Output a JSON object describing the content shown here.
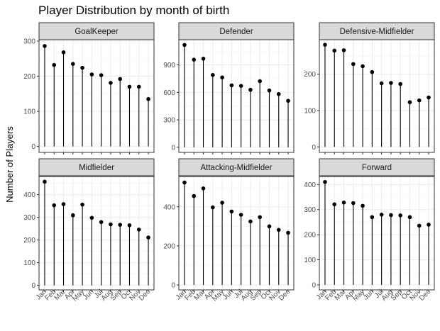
{
  "chart_data": {
    "type": "lollipop",
    "title": "Player Distribution by month of birth",
    "ylabel": "Number of Players",
    "xlabel": "",
    "categories": [
      "Jan",
      "Feb",
      "Mar",
      "Apr",
      "May",
      "Jun",
      "Jul",
      "Aug",
      "Sep",
      "Oct",
      "Nov",
      "Dec"
    ],
    "facet_layout": "2 rows x 3 columns, free y scales",
    "grid": true,
    "panels": [
      {
        "name": "GoalKeeper",
        "ylim": [
          -17,
          304
        ],
        "yticks": [
          0,
          100,
          200,
          300
        ],
        "values": [
          286,
          232,
          268,
          235,
          224,
          205,
          203,
          181,
          192,
          170,
          170,
          135
        ]
      },
      {
        "name": "Defender",
        "ylim": [
          -55,
          1175
        ],
        "yticks": [
          0,
          300,
          600,
          900
        ],
        "values": [
          1118,
          957,
          968,
          790,
          763,
          677,
          671,
          628,
          722,
          621,
          581,
          508
        ]
      },
      {
        "name": "Defensive-Midfielder",
        "ylim": [
          -15,
          295
        ],
        "yticks": [
          0,
          100,
          200
        ],
        "values": [
          281,
          265,
          266,
          228,
          222,
          206,
          175,
          176,
          173,
          123,
          128,
          136
        ]
      },
      {
        "name": "Midfielder",
        "ylim": [
          -20,
          480
        ],
        "yticks": [
          0,
          100,
          200,
          300,
          400
        ],
        "values": [
          457,
          353,
          358,
          309,
          356,
          298,
          279,
          269,
          267,
          265,
          246,
          211
        ]
      },
      {
        "name": "Attacking-Midfielder",
        "ylim": [
          -25,
          555
        ],
        "yticks": [
          0,
          200,
          400
        ],
        "values": [
          524,
          455,
          494,
          397,
          421,
          376,
          359,
          325,
          347,
          300,
          282,
          267
        ]
      },
      {
        "name": "Forward",
        "ylim": [
          -20,
          432
        ],
        "yticks": [
          0,
          100,
          200,
          300,
          400
        ],
        "values": [
          410,
          321,
          328,
          326,
          315,
          270,
          280,
          278,
          277,
          270,
          236,
          240
        ]
      }
    ]
  }
}
